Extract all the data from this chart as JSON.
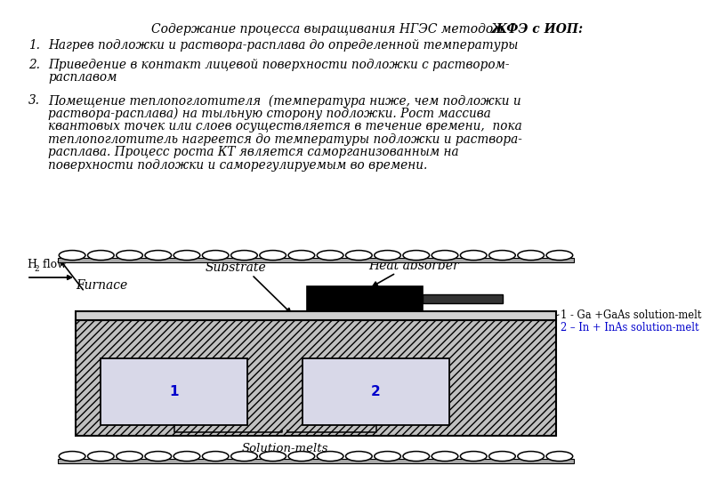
{
  "title_italic": "Содержание процесса выращивания НГЭС методом ",
  "title_bold_italic": "ЖФЭ с ИОП",
  "title_colon": ":",
  "item1": "Нагрев подложки и раствора-расплава до определенной температуры",
  "item2_line1": "Приведение в контакт лицевой поверхности подложки с раствором-",
  "item2_line2": "расплавом",
  "item3_lines": [
    "Помещение теплопоглотителя  (температура ниже, чем подложки и",
    "раствора-расплава) на тыльную сторону подложки. Рост массива",
    "квантовых точек или слоев осуществляется в течение времени,  пока",
    "теплопоглотитель нагреется до температуры подложки и раствора-",
    "расплава. Процесс роста КТ является саморганизованным на",
    "поверхности подложки и саморегулируемым во времени."
  ],
  "label_furnace": "Furnace",
  "label_substrate": "Substrate",
  "label_heat_absorber": "Heat absorber",
  "label_h2_flow": "H",
  "label_flow": "flow",
  "label_solution_melts": "Solution-melts",
  "label_1": "1",
  "label_2": "2",
  "legend_1": "1 - Ga +GaAs solution-melt",
  "legend_2": "2 – In + InAs solution-melt",
  "bg_color": "#ffffff",
  "blue_color": "#0000cc",
  "black": "#000000",
  "gray_substrate": "#c8c8c8",
  "gray_boat": "#b0b0b0",
  "gray_well": "#d8d8e8"
}
